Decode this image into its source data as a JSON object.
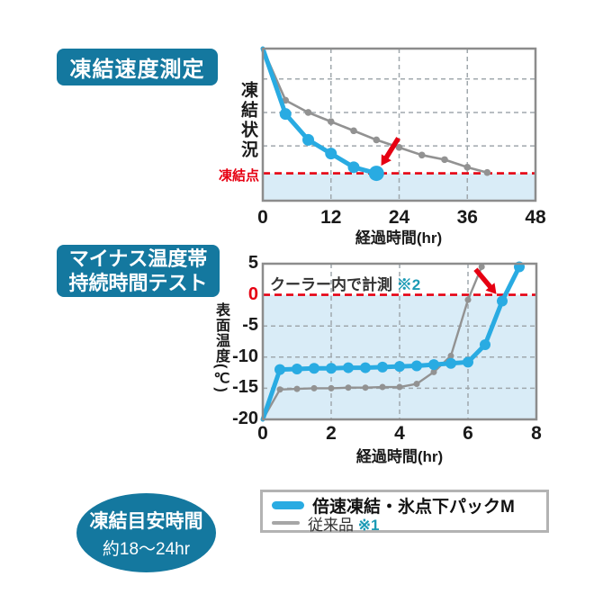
{
  "badges": {
    "chart1_title": "凍結速度測定",
    "chart2_title_line1": "マイナス温度帯",
    "chart2_title_line2": "持続時間テスト",
    "freeze_time_title": "凍結目安時間",
    "freeze_time_value": "約18〜24hr"
  },
  "legend": {
    "items": [
      {
        "label": "倍速凍結・氷点下パックM",
        "note": "",
        "color": "#29abe2"
      },
      {
        "label": "従来品",
        "note": "※1",
        "color": "#a6a6a6"
      }
    ]
  },
  "colors": {
    "accent_blue": "#29abe2",
    "badge_blue": "#14789f",
    "gray_line": "#929292",
    "red": "#e60012",
    "shade": "#d9ecf7",
    "grid": "#a0a8ad",
    "border": "#8c8c8c"
  },
  "chart_data": [
    {
      "type": "line",
      "title": "凍結速度測定",
      "xlabel": "経過時間(hr)",
      "ylabel": "凍結状況",
      "xlim": [
        0,
        48
      ],
      "ylim": [
        0,
        1
      ],
      "x_ticks": [
        0,
        12,
        24,
        36,
        48
      ],
      "grid_y": [
        0.36,
        0.58,
        0.8
      ],
      "threshold": {
        "value": 0.18,
        "label": "凍結点",
        "shade_below": true
      },
      "arrow": {
        "x": 20,
        "y": 0.18,
        "dir": 122
      },
      "series": [
        {
          "name": "倍速凍結・氷点下パックM",
          "color": "#29abe2",
          "width": 5,
          "marker": 6.5,
          "end_marker": 8.5,
          "x": [
            0,
            4,
            8,
            12,
            16,
            20
          ],
          "y": [
            1.0,
            0.57,
            0.4,
            0.31,
            0.22,
            0.18
          ]
        },
        {
          "name": "従来品",
          "color": "#929292",
          "width": 2.6,
          "marker": 3.8,
          "x": [
            0,
            4,
            8,
            12,
            16,
            20,
            24,
            28,
            32,
            36,
            39.5
          ],
          "y": [
            1.0,
            0.66,
            0.58,
            0.52,
            0.46,
            0.4,
            0.35,
            0.3,
            0.27,
            0.22,
            0.185
          ]
        }
      ]
    },
    {
      "type": "line",
      "title": "マイナス温度帯持続時間テスト",
      "xlabel": "経過時間(hr)",
      "ylabel": "表面温度(℃)",
      "xlim": [
        0,
        8
      ],
      "ylim": [
        -20,
        5
      ],
      "x_ticks": [
        0,
        2,
        4,
        6,
        8
      ],
      "y_ticks": [
        5,
        0,
        -5,
        -10,
        -15,
        -20
      ],
      "grid_y": [
        -5,
        -10,
        -15
      ],
      "threshold": {
        "value": 0,
        "shade_below": true
      },
      "annotation": {
        "text": "クーラー内で計測",
        "note": "※2"
      },
      "arrow": {
        "x": 7,
        "y": -1,
        "dir": 50
      },
      "series": [
        {
          "name": "倍速凍結・氷点下パックM",
          "color": "#29abe2",
          "width": 5,
          "marker": 6,
          "x": [
            0,
            0.5,
            1,
            1.5,
            2,
            2.5,
            3,
            3.5,
            4,
            4.5,
            5,
            5.5,
            6,
            6.5,
            7,
            7.5
          ],
          "y": [
            -20,
            -12,
            -11.9,
            -11.8,
            -11.8,
            -11.7,
            -11.7,
            -11.6,
            -11.5,
            -11.4,
            -11.2,
            -11,
            -10.8,
            -8,
            -1,
            4.5
          ]
        },
        {
          "name": "従来品",
          "color": "#929292",
          "width": 2.4,
          "marker": 3.5,
          "x": [
            0,
            0.5,
            1,
            1.5,
            2,
            2.5,
            3,
            3.5,
            4,
            4.5,
            5,
            5.5,
            6,
            6.4
          ],
          "y": [
            -20,
            -15.2,
            -15.1,
            -15,
            -15,
            -14.9,
            -14.9,
            -14.8,
            -14.8,
            -14.3,
            -12.4,
            -9.8,
            -0.8,
            4.5
          ]
        }
      ]
    }
  ]
}
